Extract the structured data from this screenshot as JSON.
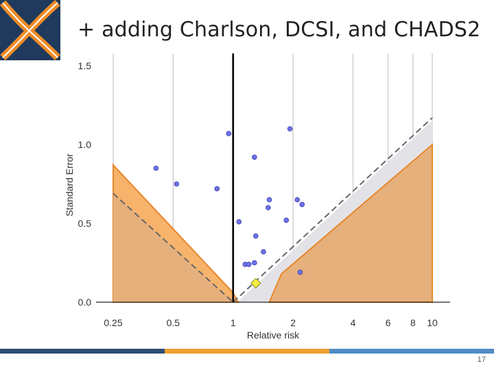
{
  "slide": {
    "title": "+ adding Charlson, DCSI, and CHADS2",
    "page_number": "17",
    "logo_icon": "cross-x-logo-icon"
  },
  "colors": {
    "logo_navy": "#1f3a5c",
    "logo_orange": "#f08c26",
    "orange_fill": "#f7b36b",
    "orange_line": "#e8862a",
    "brown_fill": "#e6b07c",
    "grey_fill": "#e3e3e7",
    "point": "#6e72e6",
    "estimate": "#f3ef3e",
    "bar_navy": "#2d4d72",
    "bar_orange": "#f0a030",
    "bar_blue": "#4f8dc4"
  },
  "chart_data": {
    "type": "scatter",
    "title": "",
    "xlabel": "Relative risk",
    "ylabel": "Standard Error",
    "x_scale": "log",
    "xlim": [
      0.25,
      10
    ],
    "ylim": [
      0,
      1.5
    ],
    "x_ticks": [
      {
        "value": 0.25,
        "label": "0.25"
      },
      {
        "value": 0.5,
        "label": "0.5"
      },
      {
        "value": 1,
        "label": "1"
      },
      {
        "value": 2,
        "label": "2"
      },
      {
        "value": 4,
        "label": "4"
      },
      {
        "value": 6,
        "label": "6"
      },
      {
        "value": 8,
        "label": "8"
      },
      {
        "value": 10,
        "label": "10"
      }
    ],
    "y_ticks": [
      {
        "value": 0.0,
        "label": "0.0"
      },
      {
        "value": 0.5,
        "label": "0.5"
      },
      {
        "value": 1.0,
        "label": "1.0"
      },
      {
        "value": 1.5,
        "label": "1.5"
      }
    ],
    "null_value": 1,
    "pooled_estimate": {
      "rr": 1.3,
      "se": 0.12
    },
    "points": [
      {
        "rr": 0.95,
        "se": 1.07
      },
      {
        "rr": 1.93,
        "se": 1.1
      },
      {
        "rr": 1.28,
        "se": 0.92
      },
      {
        "rr": 0.41,
        "se": 0.85
      },
      {
        "rr": 0.52,
        "se": 0.75
      },
      {
        "rr": 0.83,
        "se": 0.72
      },
      {
        "rr": 2.1,
        "se": 0.65
      },
      {
        "rr": 2.22,
        "se": 0.62
      },
      {
        "rr": 1.52,
        "se": 0.65
      },
      {
        "rr": 1.5,
        "se": 0.6
      },
      {
        "rr": 1.07,
        "se": 0.51
      },
      {
        "rr": 1.85,
        "se": 0.52
      },
      {
        "rr": 1.3,
        "se": 0.42
      },
      {
        "rr": 1.42,
        "se": 0.32
      },
      {
        "rr": 1.15,
        "se": 0.24
      },
      {
        "rr": 1.2,
        "se": 0.24
      },
      {
        "rr": 1.28,
        "se": 0.25
      },
      {
        "rr": 2.17,
        "se": 0.19
      }
    ]
  }
}
